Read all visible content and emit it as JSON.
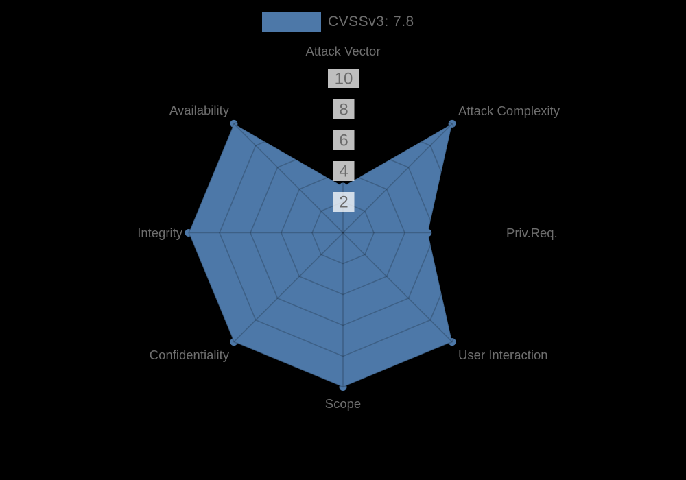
{
  "page": {
    "background_color": "#000000"
  },
  "legend": {
    "label": "CVSSv3: 7.8",
    "swatch_color": "#4d78a8"
  },
  "chart_data": {
    "type": "radar",
    "categories": [
      "Attack Vector",
      "Attack Complexity",
      "Priv.Req.",
      "User Interaction",
      "Scope",
      "Confidentiality",
      "Integrity",
      "Availability"
    ],
    "series": [
      {
        "name": "CVSSv3: 7.8",
        "color": "#4d78a8",
        "values": [
          3,
          10,
          5.5,
          10,
          10,
          10,
          10,
          10
        ]
      }
    ],
    "radial_axis": {
      "min": 0,
      "max": 10,
      "ticks": [
        2,
        4,
        6,
        8,
        10
      ],
      "tick_color": "#6b6b6b",
      "tick_backdrop_color": "rgba(255,255,255,0.75)"
    },
    "grid": {
      "shape": "polygon",
      "show": true,
      "color": "rgba(0,0,0,0.2)"
    },
    "label_color": "#6e6e6e",
    "legend_position": "top",
    "title": ""
  }
}
